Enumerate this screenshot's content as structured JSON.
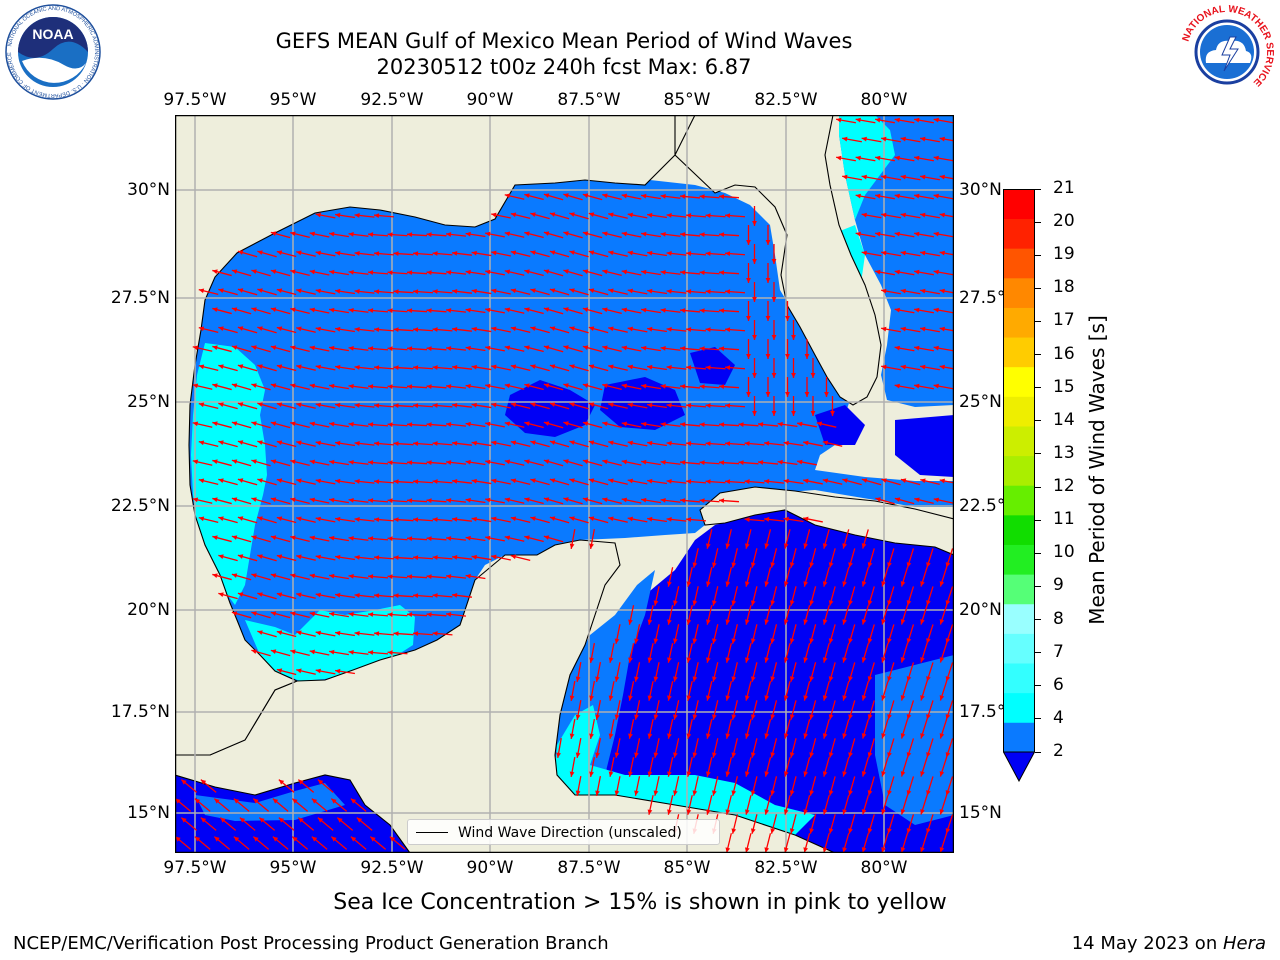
{
  "header": {
    "title_line1": "GEFS MEAN Gulf of Mexico Mean Period of Wind Waves",
    "title_line2": "20230512 t00z 240h fcst   Max: 6.87"
  },
  "logos": {
    "left": {
      "name": "NOAA",
      "ring_text": "NATIONAL OCEANIC AND ATMOSPHERIC ADMINISTRATION · U.S. DEPARTMENT OF COMMERCE"
    },
    "right": {
      "name": "National Weather Service",
      "ring_text": "NATIONAL WEATHER SERVICE"
    }
  },
  "map": {
    "lon_labels": [
      "97.5°W",
      "95°W",
      "92.5°W",
      "90°W",
      "87.5°W",
      "85°W",
      "82.5°W",
      "80°W"
    ],
    "lat_labels": [
      "30°N",
      "27.5°N",
      "25°N",
      "22.5°N",
      "20°N",
      "17.5°N",
      "15°N"
    ],
    "lon_range": [
      -98,
      -78.2
    ],
    "lat_range": [
      14,
      31.6
    ],
    "colors": {
      "land": "#eeeedc",
      "period_2_4": "#0a7aff",
      "period_lt_2": "#0000f5",
      "period_4_6": "#00ffff",
      "arrow": "#ff0000",
      "grid": "#b0b0b0"
    },
    "legend_label": "Wind Wave Direction (unscaled)"
  },
  "colorbar": {
    "ticks": [
      "2",
      "4",
      "6",
      "7",
      "8",
      "9",
      "10",
      "11",
      "12",
      "13",
      "14",
      "15",
      "16",
      "17",
      "18",
      "19",
      "20",
      "21"
    ],
    "colors": [
      "#0a7aff",
      "#00ffff",
      "#33ffff",
      "#66ffff",
      "#99ffff",
      "#55ff77",
      "#22ee22",
      "#11dd00",
      "#66ee00",
      "#aaee00",
      "#ccee00",
      "#eeee00",
      "#ffff00",
      "#ffcc00",
      "#ffaa00",
      "#ff8800",
      "#ff5500",
      "#ff2200",
      "#ff0000"
    ],
    "extend_color": "#0000f5",
    "label": "Mean Period of Wind Waves [s]"
  },
  "footer": {
    "note": "Sea Ice Concentration > 15% is shown in pink to yellow",
    "credit": "NCEP/EMC/Verification Post Processing Product Generation Branch",
    "date": "14 May 2023 on ",
    "machine": "Hera"
  }
}
